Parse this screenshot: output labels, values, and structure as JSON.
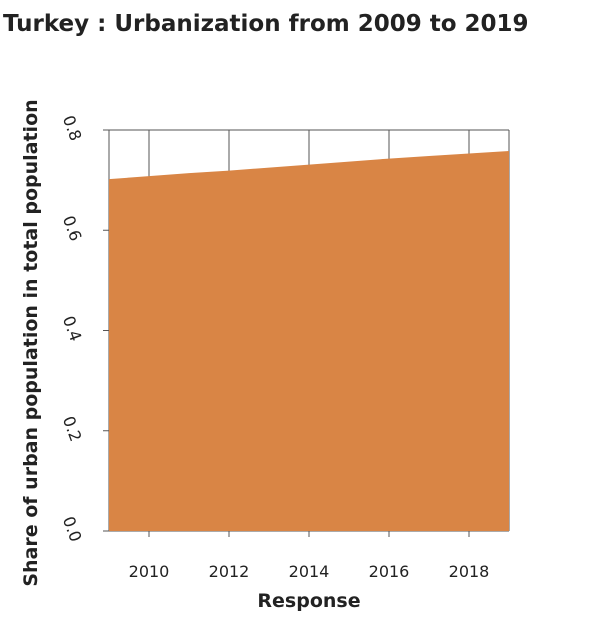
{
  "chart_data": {
    "type": "area",
    "title": "Turkey : Urbanization from 2009 to 2019",
    "xlabel": "Response",
    "ylabel": "Share of urban population in total population",
    "x": [
      2009,
      2010,
      2011,
      2012,
      2013,
      2014,
      2015,
      2016,
      2017,
      2018,
      2019
    ],
    "values": [
      0.702,
      0.708,
      0.714,
      0.719,
      0.725,
      0.731,
      0.737,
      0.743,
      0.748,
      0.753,
      0.758
    ],
    "xlim": [
      2009,
      2019
    ],
    "ylim": [
      0,
      0.8
    ],
    "xticks": [
      2010,
      2012,
      2014,
      2016,
      2018
    ],
    "xtick_labels": [
      "2010",
      "2012",
      "2014",
      "2016",
      "2018"
    ],
    "yticks": [
      0.0,
      0.2,
      0.4,
      0.6,
      0.8
    ],
    "ytick_labels": [
      "0.0",
      "0.2",
      "0.4",
      "0.6",
      "0.8"
    ],
    "grid": true,
    "fill_color": "#d98545",
    "grid_color": "#555555"
  }
}
